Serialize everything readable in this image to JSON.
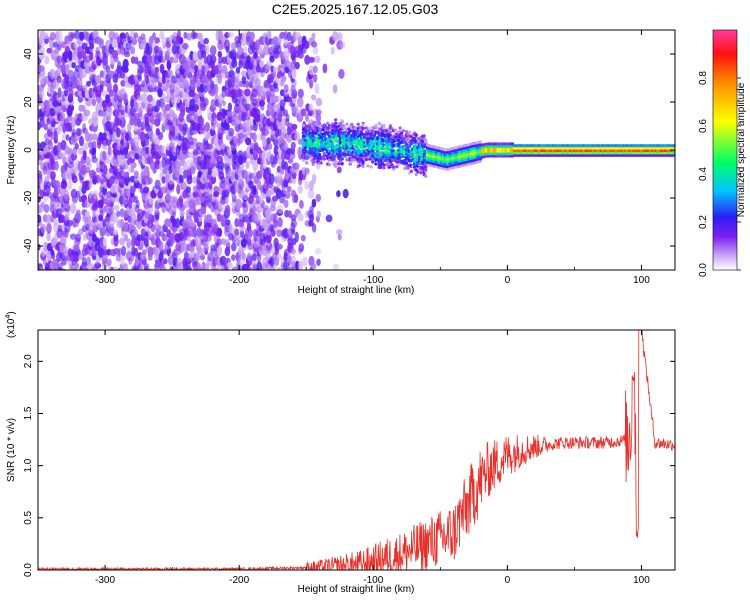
{
  "title": "C2E5.2025.167.12.05.G03",
  "chart_data": [
    {
      "type": "heatmap",
      "xlabel": "Height of straight line (km)",
      "ylabel": "Frequency (Hz)",
      "xlim": [
        -350,
        125
      ],
      "ylim": [
        -50,
        50
      ],
      "xticks": [
        "-300",
        "-200",
        "-100",
        "0",
        "100"
      ],
      "yticks": [
        "-40",
        "-20",
        "0",
        "20",
        "40"
      ],
      "colorbar": {
        "label": "Normalized spectral amplitude",
        "ticks": [
          "0.0",
          "0.2",
          "0.4",
          "0.6",
          "0.8"
        ],
        "range": [
          0,
          1
        ]
      },
      "ridge": [
        {
          "x": -150,
          "freq": 3
        },
        {
          "x": -120,
          "freq": 3
        },
        {
          "x": -90,
          "freq": 1
        },
        {
          "x": -60,
          "freq": -2
        },
        {
          "x": -45,
          "freq": -4
        },
        {
          "x": -30,
          "freq": -2
        },
        {
          "x": -15,
          "freq": 0
        },
        {
          "x": 0,
          "freq": 0
        },
        {
          "x": 50,
          "freq": 0
        },
        {
          "x": 100,
          "freq": 0
        },
        {
          "x": 125,
          "freq": 0
        }
      ]
    },
    {
      "type": "line",
      "xlabel": "Height of straight line (km)",
      "ylabel": "SNR (10 * v/v)",
      "scale_label": "(x10",
      "scale_exp": "4",
      "xlim": [
        -350,
        125
      ],
      "ylim": [
        0,
        2.3
      ],
      "xticks": [
        "-300",
        "-200",
        "-100",
        "0",
        "100"
      ],
      "yticks": [
        "0.0",
        "0.5",
        "1.0",
        "1.5",
        "2.0"
      ],
      "color": "#e8302a",
      "series": [
        {
          "x": [
            -350,
            -300,
            -250,
            -200,
            -160,
            -130,
            -110,
            -100,
            -90,
            -80,
            -70,
            -60,
            -50,
            -40,
            -35,
            -30,
            -25,
            -20,
            -15,
            -10,
            -5,
            0,
            5,
            10,
            20,
            30,
            40,
            50,
            60,
            70,
            80,
            90,
            95,
            97,
            100,
            110,
            125
          ],
          "y": [
            0.01,
            0.01,
            0.01,
            0.01,
            0.02,
            0.03,
            0.05,
            0.08,
            0.12,
            0.15,
            0.2,
            0.25,
            0.3,
            0.35,
            0.5,
            0.6,
            0.75,
            0.85,
            0.95,
            1.0,
            1.05,
            1.1,
            1.12,
            1.15,
            1.18,
            1.2,
            1.22,
            1.22,
            1.22,
            1.22,
            1.23,
            1.25,
            1.7,
            0.3,
            2.3,
            1.22,
            1.2
          ]
        }
      ]
    }
  ]
}
